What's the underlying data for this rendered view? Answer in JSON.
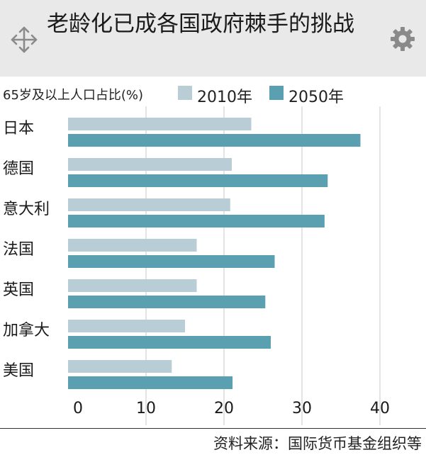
{
  "header": {
    "title": "老龄化已成各国政府棘手的挑战",
    "move_icon": "move-arrows-icon",
    "gear_icon": "gear-icon"
  },
  "colors": {
    "header_bg": "#e9e9e9",
    "series_2010": "#b8cdd6",
    "series_2050": "#5ba0b0",
    "grid": "#c8c8c8"
  },
  "chart_data": {
    "type": "bar",
    "orientation": "horizontal",
    "subtitle": "65岁及以上人口占比(%)",
    "categories": [
      "日本",
      "德国",
      "意大利",
      "法国",
      "英国",
      "加拿大",
      "美国"
    ],
    "series": [
      {
        "name": "2010年",
        "values": [
          23.5,
          21,
          20.8,
          16.5,
          16.5,
          15,
          13.3
        ]
      },
      {
        "name": "2050年",
        "values": [
          37.5,
          33.3,
          32.9,
          26.5,
          25.3,
          26,
          21.1
        ]
      }
    ],
    "xticks": [
      "0",
      "10",
      "20",
      "30",
      "40"
    ],
    "xlim": [
      0,
      42
    ],
    "grid": true,
    "legend": "top"
  },
  "footer": {
    "source": "资料来源：国际货币基金组织等"
  }
}
